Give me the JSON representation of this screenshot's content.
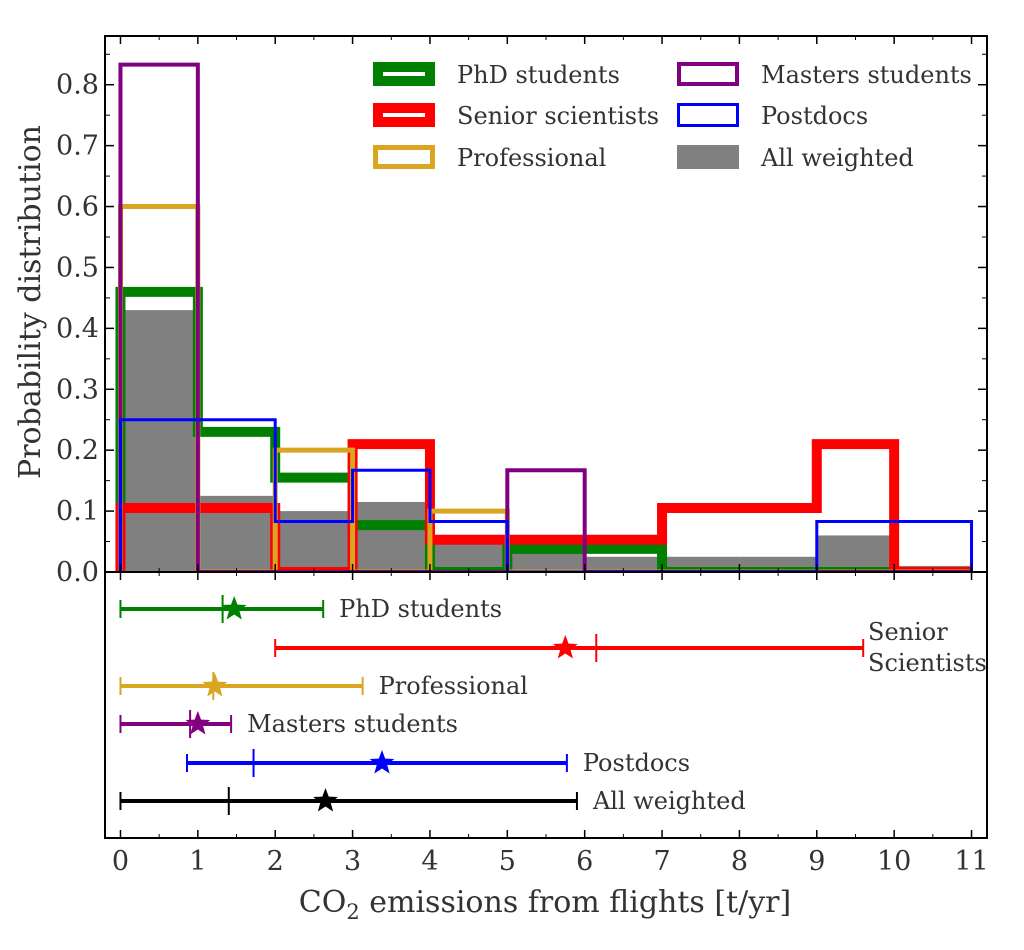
{
  "chart_data": {
    "type": "histogram",
    "xlabel": "CO",
    "xlabel_sub": "2",
    "xlabel_rest": " emissions from flights [t/yr]",
    "ylabel": "Probability distribution",
    "xlim": [
      -0.2,
      11.2
    ],
    "ylim": [
      0,
      0.88
    ],
    "x_ticks": [
      "0",
      "1",
      "2",
      "3",
      "4",
      "5",
      "6",
      "7",
      "8",
      "9",
      "10",
      "11"
    ],
    "y_ticks": [
      "0.0",
      "0.1",
      "0.2",
      "0.3",
      "0.4",
      "0.5",
      "0.6",
      "0.7",
      "0.8"
    ],
    "bin_edges": [
      0,
      1,
      2,
      3,
      4,
      5,
      6,
      7,
      8,
      9,
      10,
      11
    ],
    "legend": [
      {
        "label": "PhD students",
        "key": "phd"
      },
      {
        "label": "Masters students",
        "key": "masters"
      },
      {
        "label": "Senior scientists",
        "key": "senior"
      },
      {
        "label": "Postdocs",
        "key": "postdocs"
      },
      {
        "label": "Professional",
        "key": "professional"
      },
      {
        "label": "All weighted",
        "key": "all"
      }
    ],
    "series": [
      {
        "key": "all",
        "name": "All weighted",
        "color": "#808080",
        "fill": true,
        "stroke_width": 0,
        "values": [
          0.43,
          0.125,
          0.1,
          0.115,
          0.05,
          0.035,
          0.025,
          0.025,
          0.025,
          0.06,
          0.01
        ]
      },
      {
        "key": "phd",
        "name": "PhD students",
        "color": "#008000",
        "fill": false,
        "stroke_width": 10,
        "values": [
          0.46,
          0.23,
          0.155,
          0.077,
          0.0,
          0.038,
          0.038,
          0.0,
          0.0,
          0.0,
          0.0
        ]
      },
      {
        "key": "senior",
        "name": "Senior scientists",
        "color": "#ff0000",
        "fill": false,
        "stroke_width": 10,
        "values": [
          0.105,
          0.105,
          0.0,
          0.21,
          0.053,
          0.053,
          0.053,
          0.105,
          0.105,
          0.21,
          0.0
        ]
      },
      {
        "key": "professional",
        "name": "Professional",
        "color": "#daa520",
        "fill": false,
        "stroke_width": 5,
        "values": [
          0.6,
          0.0,
          0.2,
          0.0,
          0.1,
          0.0,
          0.0,
          0.0,
          0.0,
          0.0,
          0.0
        ]
      },
      {
        "key": "masters",
        "name": "Masters students",
        "color": "#800080",
        "fill": false,
        "stroke_width": 4,
        "values": [
          0.833,
          0.0,
          0.0,
          0.0,
          0.0,
          0.167,
          0.0,
          0.0,
          0.0,
          0.0,
          0.0
        ]
      },
      {
        "key": "postdocs",
        "name": "Postdocs",
        "color": "#0000ff",
        "fill": false,
        "stroke_width": 3,
        "values": [
          0.25,
          0.25,
          0.083,
          0.167,
          0.083,
          0.0,
          0.0,
          0.0,
          0.0,
          0.083,
          0.083
        ]
      }
    ],
    "ranges": [
      {
        "key": "phd",
        "label": "PhD students",
        "color": "#008000",
        "min": 0.0,
        "max": 2.62,
        "median": 1.32,
        "mean": 1.47
      },
      {
        "key": "senior",
        "label": "Senior",
        "label2": "Scientists",
        "color": "#ff0000",
        "min": 2.0,
        "max": 9.6,
        "median": 6.15,
        "mean": 5.75
      },
      {
        "key": "professional",
        "label": "Professional",
        "color": "#daa520",
        "min": 0.0,
        "max": 3.13,
        "median": 1.2,
        "mean": 1.22
      },
      {
        "key": "masters",
        "label": "Masters students",
        "color": "#800080",
        "min": 0.0,
        "max": 1.43,
        "median": 0.9,
        "mean": 1.0
      },
      {
        "key": "postdocs",
        "label": "Postdocs",
        "color": "#0000ff",
        "min": 0.86,
        "max": 5.77,
        "median": 1.72,
        "mean": 3.38
      },
      {
        "key": "all",
        "label": "All weighted",
        "color": "#000000",
        "min": 0.0,
        "max": 5.9,
        "median": 1.4,
        "mean": 2.65
      }
    ]
  }
}
